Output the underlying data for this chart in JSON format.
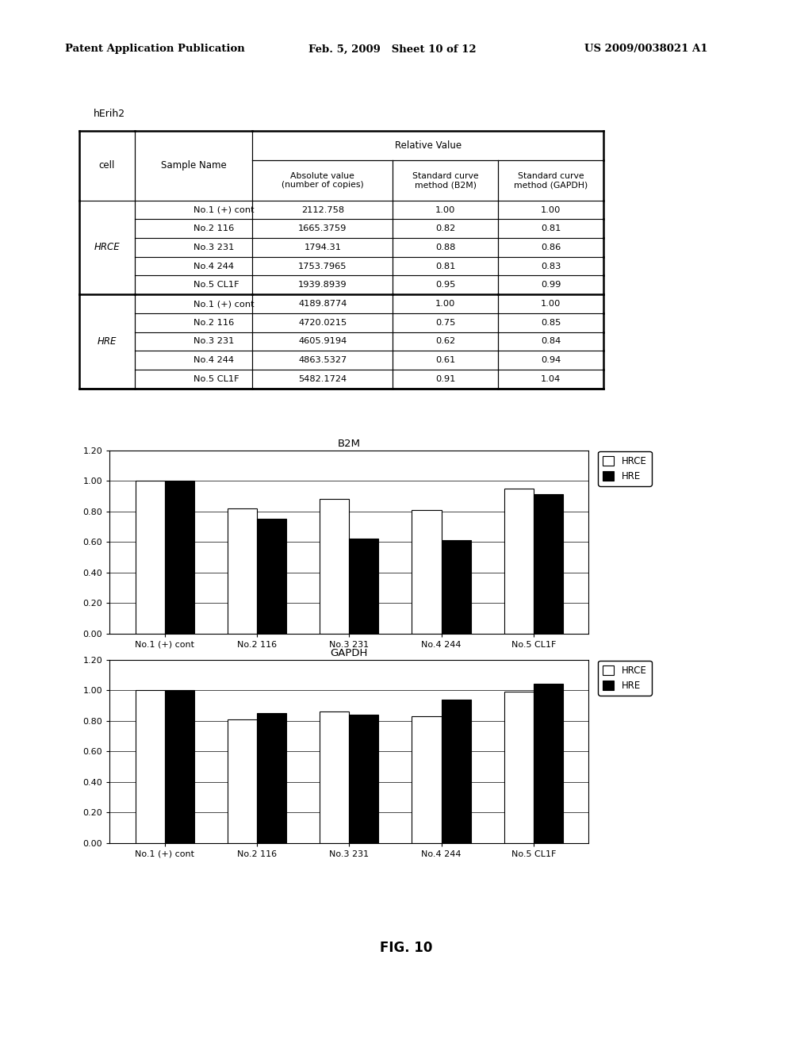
{
  "title_label": "hErih2",
  "header_line1": "Patent Application Publication",
  "header_line2": "Feb. 5, 2009   Sheet 10 of 12",
  "header_line3": "US 2009/0038021 A1",
  "fig_label": "FIG. 10",
  "table": {
    "rows": [
      [
        "HRCE",
        "No.1 (+) cont",
        "2112.758",
        "1.00",
        "1.00"
      ],
      [
        "HRCE",
        "No.2 116",
        "1665.3759",
        "0.82",
        "0.81"
      ],
      [
        "HRCE",
        "No.3 231",
        "1794.31",
        "0.88",
        "0.86"
      ],
      [
        "HRCE",
        "No.4 244",
        "1753.7965",
        "0.81",
        "0.83"
      ],
      [
        "HRCE",
        "No.5 CL1F",
        "1939.8939",
        "0.95",
        "0.99"
      ],
      [
        "HRE",
        "No.1 (+) cont",
        "4189.8774",
        "1.00",
        "1.00"
      ],
      [
        "HRE",
        "No.2 116",
        "4720.0215",
        "0.75",
        "0.85"
      ],
      [
        "HRE",
        "No.3 231",
        "4605.9194",
        "0.62",
        "0.84"
      ],
      [
        "HRE",
        "No.4 244",
        "4863.5327",
        "0.61",
        "0.94"
      ],
      [
        "HRE",
        "No.5 CL1F",
        "5482.1724",
        "0.91",
        "1.04"
      ]
    ]
  },
  "b2m_chart": {
    "title": "B2M",
    "categories": [
      "No.1 (+) cont",
      "No.2 116",
      "No.3 231",
      "No.4 244",
      "No.5 CL1F"
    ],
    "HRCE": [
      1.0,
      0.82,
      0.88,
      0.81,
      0.95
    ],
    "HRE": [
      1.0,
      0.75,
      0.62,
      0.61,
      0.91
    ],
    "ylim": [
      0.0,
      1.2
    ],
    "yticks": [
      0.0,
      0.2,
      0.4,
      0.6,
      0.8,
      1.0,
      1.2
    ]
  },
  "gapdh_chart": {
    "title": "GAPDH",
    "categories": [
      "No.1 (+) cont",
      "No.2 116",
      "No.3 231",
      "No.4 244",
      "No.5 CL1F"
    ],
    "HRCE": [
      1.0,
      0.81,
      0.86,
      0.83,
      0.99
    ],
    "HRE": [
      1.0,
      0.85,
      0.84,
      0.94,
      1.04
    ],
    "ylim": [
      0.0,
      1.2
    ],
    "yticks": [
      0.0,
      0.2,
      0.4,
      0.6,
      0.8,
      1.0,
      1.2
    ]
  },
  "bar_color_HRCE": "white",
  "bar_color_HRE": "black",
  "bar_edgecolor": "black",
  "background_color": "white"
}
